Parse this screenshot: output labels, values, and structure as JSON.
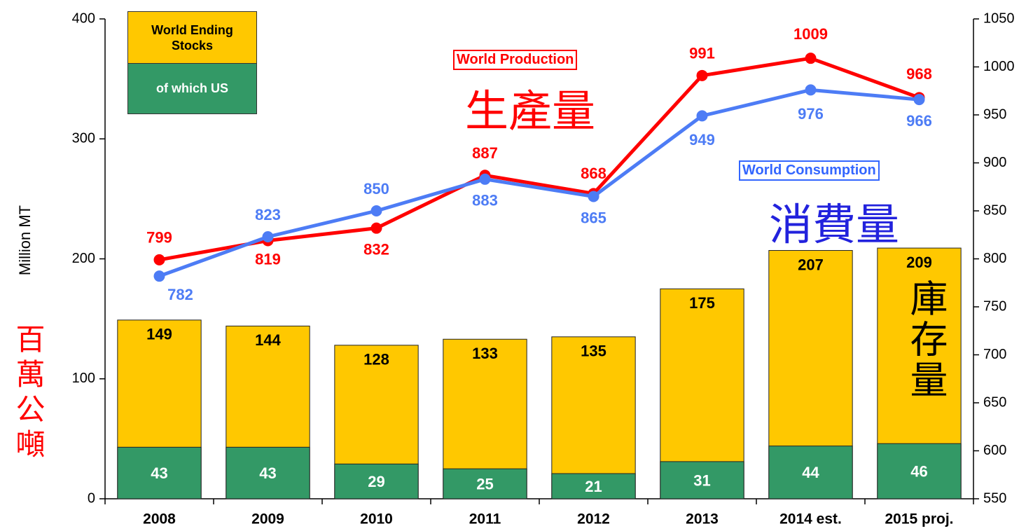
{
  "chart_data": {
    "type": "bar",
    "y_label": "Million MT",
    "annotations": [
      "生產量",
      "消費量",
      "庫存量",
      "百萬公噸"
    ],
    "categories": [
      "2008",
      "2009",
      "2010",
      "2011",
      "2012",
      "2013",
      "2014 est.",
      "2015 proj."
    ],
    "series": [
      {
        "name": "World Ending Stocks",
        "type": "bar",
        "color": "#ffc800",
        "values": [
          149,
          144,
          128,
          133,
          135,
          175,
          207,
          209
        ]
      },
      {
        "name": "of which US",
        "type": "bar",
        "color": "#339966",
        "values": [
          43,
          43,
          29,
          25,
          21,
          31,
          44,
          46
        ]
      },
      {
        "name": "World Production",
        "type": "line",
        "axis": "y2",
        "color": "#ff0000",
        "values": [
          799,
          819,
          832,
          887,
          868,
          991,
          1009,
          968
        ]
      },
      {
        "name": "World Consumption",
        "type": "line",
        "axis": "y2",
        "color": "#4d7cf5",
        "values": [
          782,
          823,
          850,
          883,
          865,
          949,
          976,
          966
        ]
      }
    ],
    "ylim": [
      0,
      400
    ],
    "yticks": [
      0,
      100,
      200,
      300,
      400
    ],
    "y2lim": [
      550,
      1050
    ],
    "y2ticks": [
      550,
      600,
      650,
      700,
      750,
      800,
      850,
      900,
      950,
      1000,
      1050
    ]
  }
}
